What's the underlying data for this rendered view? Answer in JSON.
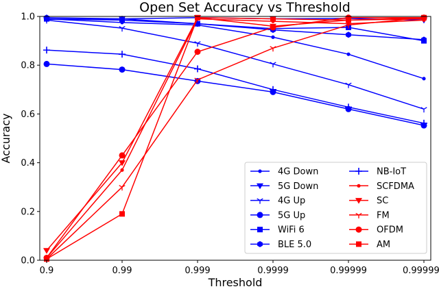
{
  "chart_data": {
    "type": "line",
    "title": "Open Set Accuracy vs Threshold",
    "xlabel": "Threshold",
    "ylabel": "Accuracy",
    "x": [
      "0.9",
      "0.99",
      "0.999",
      "0.9999",
      "0.99999",
      "0.999999"
    ],
    "ylim": [
      0.0,
      1.0
    ],
    "yticks": [
      "0.0",
      "0.2",
      "0.4",
      "0.6",
      "0.8",
      "1.0"
    ],
    "grid": false,
    "legend_position": "lower-right",
    "series": [
      {
        "name": "4G Down",
        "color": "#0000ff",
        "marker": "point",
        "values": [
          0.99,
          0.975,
          0.965,
          0.915,
          0.845,
          0.745
        ]
      },
      {
        "name": "5G Down",
        "color": "#0000ff",
        "marker": "triangle-down",
        "values": [
          0.988,
          0.99,
          0.995,
          0.99,
          0.992,
          0.985
        ]
      },
      {
        "name": "4G Up",
        "color": "#0000ff",
        "marker": "tri-down",
        "values": [
          0.985,
          0.952,
          0.89,
          0.805,
          0.72,
          0.62
        ]
      },
      {
        "name": "5G Up",
        "color": "#0000ff",
        "marker": "circle",
        "values": [
          0.805,
          0.782,
          0.735,
          0.69,
          0.62,
          0.553
        ]
      },
      {
        "name": "WiFi 6",
        "color": "#0000ff",
        "marker": "square",
        "values": [
          0.99,
          0.985,
          0.97,
          0.95,
          0.955,
          0.9
        ]
      },
      {
        "name": "BLE 5.0",
        "color": "#0000ff",
        "marker": "hexagon",
        "values": [
          0.995,
          0.99,
          0.97,
          0.945,
          0.925,
          0.905
        ]
      },
      {
        "name": "NB-IoT",
        "color": "#0000ff",
        "marker": "plus",
        "values": [
          0.862,
          0.845,
          0.785,
          0.7,
          0.628,
          0.562
        ]
      },
      {
        "name": "SCFDMA",
        "color": "#ff0000",
        "marker": "point",
        "values": [
          0.01,
          0.37,
          0.99,
          0.98,
          0.97,
          0.985
        ]
      },
      {
        "name": "SC",
        "color": "#ff0000",
        "marker": "triangle-down",
        "values": [
          0.04,
          0.4,
          0.995,
          0.96,
          0.985,
          0.99
        ]
      },
      {
        "name": "FM",
        "color": "#ff0000",
        "marker": "tri-down",
        "values": [
          0.005,
          0.3,
          0.74,
          0.87,
          0.965,
          0.995
        ]
      },
      {
        "name": "OFDM",
        "color": "#ff0000",
        "marker": "circle",
        "values": [
          0.01,
          0.43,
          0.855,
          0.955,
          0.995,
          0.995
        ]
      },
      {
        "name": "AM",
        "color": "#ff0000",
        "marker": "square",
        "values": [
          0.005,
          0.19,
          0.995,
          0.99,
          0.985,
          0.995
        ]
      }
    ]
  }
}
